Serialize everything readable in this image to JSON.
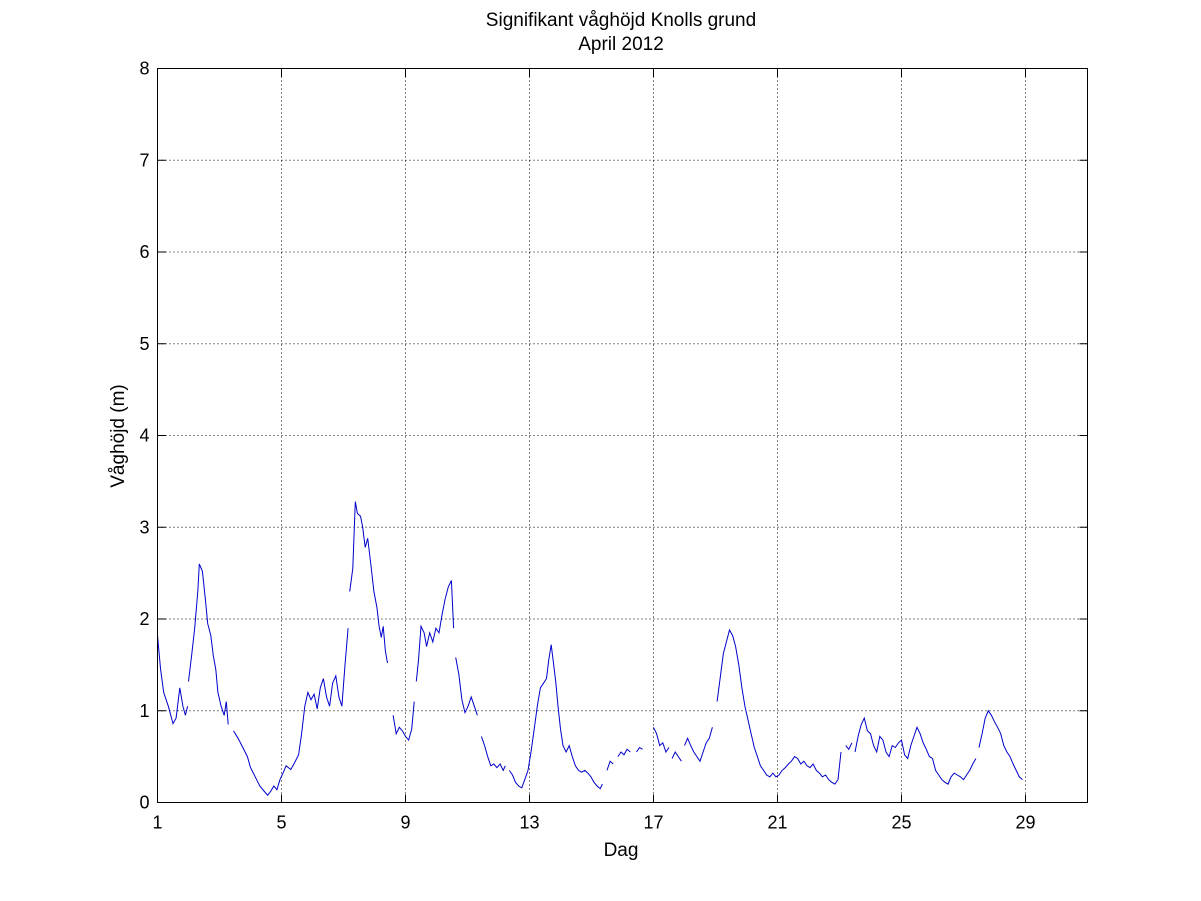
{
  "chart_data": {
    "type": "line",
    "title": "Signifikant våghöjd Knolls grund",
    "subtitle": "April 2012",
    "xlabel": "Dag",
    "ylabel": "Våghöjd (m)",
    "xlim": [
      1,
      31
    ],
    "ylim": [
      0,
      8
    ],
    "xticks": [
      1,
      5,
      9,
      13,
      17,
      21,
      25,
      29
    ],
    "yticks": [
      0,
      1,
      2,
      3,
      4,
      5,
      6,
      7,
      8
    ],
    "grid": true,
    "color": "#0000cc",
    "series": [
      {
        "segments": [
          [
            [
              1.0,
              1.82
            ],
            [
              1.1,
              1.45
            ],
            [
              1.2,
              1.2
            ],
            [
              1.35,
              1.05
            ],
            [
              1.5,
              0.86
            ],
            [
              1.6,
              0.92
            ],
            [
              1.72,
              1.25
            ],
            [
              1.82,
              1.05
            ],
            [
              1.9,
              0.95
            ],
            [
              1.97,
              1.05
            ]
          ],
          [
            [
              2.0,
              1.32
            ],
            [
              2.1,
              1.6
            ],
            [
              2.2,
              1.9
            ],
            [
              2.3,
              2.3
            ],
            [
              2.35,
              2.6
            ],
            [
              2.45,
              2.52
            ],
            [
              2.55,
              2.2
            ],
            [
              2.62,
              1.95
            ],
            [
              2.72,
              1.82
            ],
            [
              2.8,
              1.6
            ],
            [
              2.88,
              1.45
            ],
            [
              2.95,
              1.2
            ],
            [
              3.05,
              1.05
            ],
            [
              3.15,
              0.95
            ],
            [
              3.22,
              1.1
            ],
            [
              3.28,
              0.85
            ]
          ],
          [
            [
              3.45,
              0.78
            ],
            [
              3.6,
              0.7
            ],
            [
              3.75,
              0.6
            ],
            [
              3.9,
              0.5
            ],
            [
              4.0,
              0.38
            ],
            [
              4.15,
              0.28
            ],
            [
              4.3,
              0.18
            ],
            [
              4.45,
              0.12
            ],
            [
              4.55,
              0.08
            ],
            [
              4.65,
              0.12
            ],
            [
              4.75,
              0.18
            ],
            [
              4.85,
              0.14
            ],
            [
              4.95,
              0.25
            ],
            [
              5.05,
              0.32
            ],
            [
              5.15,
              0.4
            ],
            [
              5.3,
              0.36
            ],
            [
              5.4,
              0.42
            ],
            [
              5.55,
              0.52
            ],
            [
              5.65,
              0.75
            ],
            [
              5.75,
              1.05
            ],
            [
              5.85,
              1.2
            ],
            [
              5.95,
              1.12
            ],
            [
              6.05,
              1.18
            ],
            [
              6.15,
              1.02
            ],
            [
              6.25,
              1.25
            ],
            [
              6.35,
              1.35
            ],
            [
              6.45,
              1.15
            ],
            [
              6.55,
              1.05
            ],
            [
              6.65,
              1.3
            ],
            [
              6.75,
              1.38
            ],
            [
              6.85,
              1.15
            ],
            [
              6.95,
              1.05
            ],
            [
              7.05,
              1.5
            ],
            [
              7.15,
              1.9
            ]
          ],
          [
            [
              7.2,
              2.3
            ],
            [
              7.3,
              2.55
            ],
            [
              7.38,
              3.28
            ],
            [
              7.45,
              3.15
            ],
            [
              7.55,
              3.12
            ],
            [
              7.62,
              3.0
            ],
            [
              7.7,
              2.78
            ],
            [
              7.78,
              2.88
            ],
            [
              7.88,
              2.6
            ],
            [
              7.98,
              2.3
            ],
            [
              8.08,
              2.12
            ],
            [
              8.15,
              1.92
            ],
            [
              8.22,
              1.8
            ],
            [
              8.28,
              1.92
            ],
            [
              8.35,
              1.65
            ],
            [
              8.42,
              1.52
            ]
          ],
          [
            [
              8.6,
              0.95
            ],
            [
              8.7,
              0.75
            ],
            [
              8.8,
              0.82
            ],
            [
              8.9,
              0.78
            ],
            [
              9.0,
              0.72
            ],
            [
              9.1,
              0.68
            ],
            [
              9.2,
              0.8
            ],
            [
              9.28,
              1.1
            ]
          ],
          [
            [
              9.35,
              1.32
            ],
            [
              9.42,
              1.55
            ],
            [
              9.5,
              1.92
            ],
            [
              9.6,
              1.85
            ],
            [
              9.68,
              1.7
            ],
            [
              9.78,
              1.85
            ],
            [
              9.88,
              1.75
            ],
            [
              9.98,
              1.9
            ],
            [
              10.08,
              1.85
            ],
            [
              10.18,
              2.05
            ],
            [
              10.28,
              2.22
            ],
            [
              10.38,
              2.35
            ],
            [
              10.48,
              2.42
            ],
            [
              10.55,
              1.9
            ]
          ],
          [
            [
              10.62,
              1.58
            ],
            [
              10.72,
              1.4
            ],
            [
              10.82,
              1.12
            ],
            [
              10.92,
              0.98
            ],
            [
              11.02,
              1.05
            ],
            [
              11.12,
              1.15
            ],
            [
              11.22,
              1.05
            ],
            [
              11.32,
              0.95
            ]
          ],
          [
            [
              11.45,
              0.72
            ],
            [
              11.55,
              0.62
            ],
            [
              11.65,
              0.5
            ],
            [
              11.75,
              0.4
            ],
            [
              11.85,
              0.42
            ],
            [
              11.95,
              0.38
            ],
            [
              12.05,
              0.42
            ],
            [
              12.15,
              0.35
            ],
            [
              12.22,
              0.4
            ]
          ],
          [
            [
              12.35,
              0.35
            ],
            [
              12.45,
              0.3
            ],
            [
              12.55,
              0.22
            ],
            [
              12.65,
              0.18
            ],
            [
              12.75,
              0.16
            ],
            [
              12.85,
              0.25
            ],
            [
              12.95,
              0.35
            ],
            [
              13.05,
              0.55
            ],
            [
              13.15,
              0.8
            ],
            [
              13.25,
              1.05
            ],
            [
              13.35,
              1.25
            ],
            [
              13.45,
              1.3
            ],
            [
              13.55,
              1.35
            ],
            [
              13.62,
              1.55
            ],
            [
              13.7,
              1.72
            ],
            [
              13.78,
              1.5
            ],
            [
              13.85,
              1.3
            ],
            [
              13.92,
              1.05
            ],
            [
              14.0,
              0.8
            ],
            [
              14.08,
              0.62
            ],
            [
              14.18,
              0.55
            ],
            [
              14.28,
              0.62
            ],
            [
              14.38,
              0.5
            ],
            [
              14.48,
              0.4
            ],
            [
              14.58,
              0.35
            ],
            [
              14.68,
              0.33
            ],
            [
              14.78,
              0.35
            ],
            [
              14.88,
              0.32
            ],
            [
              14.98,
              0.28
            ],
            [
              15.08,
              0.22
            ],
            [
              15.18,
              0.18
            ],
            [
              15.28,
              0.15
            ],
            [
              15.35,
              0.2
            ]
          ],
          [
            [
              15.5,
              0.35
            ],
            [
              15.6,
              0.45
            ],
            [
              15.7,
              0.42
            ]
          ],
          [
            [
              15.85,
              0.5
            ],
            [
              15.95,
              0.55
            ],
            [
              16.05,
              0.52
            ],
            [
              16.15,
              0.58
            ],
            [
              16.25,
              0.55
            ]
          ],
          [
            [
              16.45,
              0.55
            ],
            [
              16.55,
              0.6
            ],
            [
              16.65,
              0.58
            ]
          ],
          [
            [
              17.0,
              0.82
            ],
            [
              17.1,
              0.75
            ],
            [
              17.2,
              0.62
            ],
            [
              17.3,
              0.65
            ],
            [
              17.4,
              0.55
            ],
            [
              17.5,
              0.6
            ]
          ],
          [
            [
              17.6,
              0.48
            ],
            [
              17.7,
              0.55
            ],
            [
              17.8,
              0.5
            ],
            [
              17.9,
              0.45
            ]
          ],
          [
            [
              18.0,
              0.62
            ],
            [
              18.1,
              0.7
            ],
            [
              18.2,
              0.62
            ],
            [
              18.3,
              0.55
            ],
            [
              18.4,
              0.5
            ],
            [
              18.5,
              0.45
            ],
            [
              18.6,
              0.55
            ],
            [
              18.7,
              0.65
            ],
            [
              18.8,
              0.7
            ],
            [
              18.9,
              0.82
            ]
          ],
          [
            [
              19.05,
              1.1
            ],
            [
              19.15,
              1.35
            ],
            [
              19.25,
              1.62
            ],
            [
              19.35,
              1.75
            ],
            [
              19.45,
              1.88
            ],
            [
              19.55,
              1.82
            ],
            [
              19.65,
              1.7
            ],
            [
              19.75,
              1.5
            ],
            [
              19.85,
              1.25
            ],
            [
              19.95,
              1.05
            ],
            [
              20.05,
              0.9
            ],
            [
              20.15,
              0.75
            ],
            [
              20.25,
              0.6
            ],
            [
              20.35,
              0.5
            ],
            [
              20.45,
              0.4
            ],
            [
              20.55,
              0.35
            ],
            [
              20.65,
              0.3
            ],
            [
              20.75,
              0.28
            ],
            [
              20.85,
              0.32
            ],
            [
              20.95,
              0.28
            ],
            [
              21.05,
              0.3
            ],
            [
              21.15,
              0.35
            ],
            [
              21.25,
              0.38
            ],
            [
              21.35,
              0.42
            ],
            [
              21.45,
              0.45
            ],
            [
              21.55,
              0.5
            ],
            [
              21.65,
              0.48
            ],
            [
              21.75,
              0.42
            ],
            [
              21.85,
              0.45
            ],
            [
              21.95,
              0.4
            ],
            [
              22.05,
              0.38
            ],
            [
              22.15,
              0.42
            ],
            [
              22.25,
              0.35
            ],
            [
              22.35,
              0.32
            ],
            [
              22.45,
              0.28
            ],
            [
              22.55,
              0.3
            ],
            [
              22.65,
              0.25
            ],
            [
              22.75,
              0.22
            ],
            [
              22.85,
              0.2
            ],
            [
              22.95,
              0.25
            ],
            [
              23.05,
              0.55
            ]
          ],
          [
            [
              23.2,
              0.62
            ],
            [
              23.3,
              0.58
            ],
            [
              23.4,
              0.65
            ]
          ],
          [
            [
              23.5,
              0.55
            ],
            [
              23.6,
              0.72
            ],
            [
              23.7,
              0.85
            ],
            [
              23.8,
              0.92
            ],
            [
              23.9,
              0.78
            ],
            [
              24.0,
              0.75
            ],
            [
              24.1,
              0.62
            ],
            [
              24.2,
              0.55
            ],
            [
              24.3,
              0.72
            ],
            [
              24.4,
              0.68
            ],
            [
              24.5,
              0.55
            ],
            [
              24.6,
              0.5
            ],
            [
              24.7,
              0.62
            ],
            [
              24.8,
              0.6
            ],
            [
              24.9,
              0.65
            ],
            [
              25.0,
              0.68
            ],
            [
              25.1,
              0.52
            ],
            [
              25.2,
              0.48
            ],
            [
              25.3,
              0.62
            ],
            [
              25.4,
              0.72
            ],
            [
              25.5,
              0.82
            ],
            [
              25.6,
              0.75
            ],
            [
              25.7,
              0.65
            ],
            [
              25.8,
              0.58
            ],
            [
              25.9,
              0.5
            ],
            [
              26.0,
              0.48
            ],
            [
              26.1,
              0.35
            ],
            [
              26.2,
              0.3
            ],
            [
              26.3,
              0.25
            ],
            [
              26.4,
              0.22
            ],
            [
              26.5,
              0.2
            ],
            [
              26.6,
              0.28
            ],
            [
              26.7,
              0.32
            ],
            [
              26.8,
              0.3
            ],
            [
              26.9,
              0.28
            ],
            [
              27.0,
              0.25
            ],
            [
              27.1,
              0.3
            ],
            [
              27.2,
              0.35
            ],
            [
              27.3,
              0.42
            ],
            [
              27.4,
              0.48
            ]
          ],
          [
            [
              27.5,
              0.6
            ],
            [
              27.6,
              0.75
            ],
            [
              27.7,
              0.92
            ],
            [
              27.8,
              1.0
            ],
            [
              27.9,
              0.95
            ],
            [
              28.0,
              0.88
            ],
            [
              28.1,
              0.82
            ],
            [
              28.2,
              0.75
            ],
            [
              28.3,
              0.62
            ],
            [
              28.4,
              0.55
            ],
            [
              28.5,
              0.5
            ],
            [
              28.6,
              0.42
            ],
            [
              28.7,
              0.35
            ],
            [
              28.8,
              0.28
            ],
            [
              28.9,
              0.25
            ]
          ]
        ]
      }
    ]
  }
}
